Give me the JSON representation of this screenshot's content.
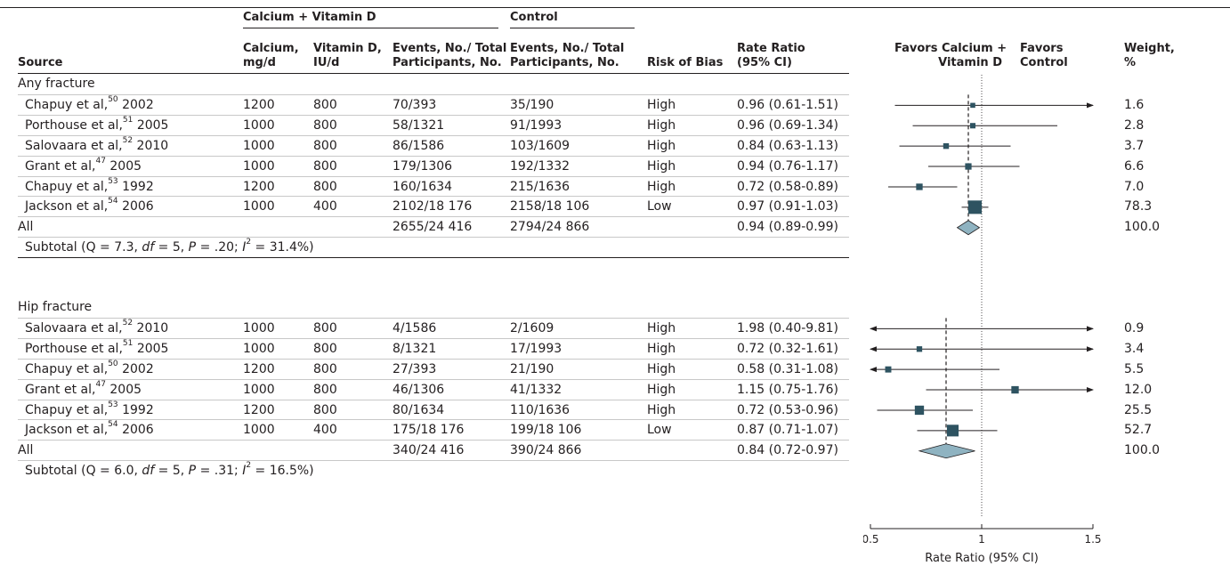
{
  "headers": {
    "group_calcium": "Calcium + Vitamin D",
    "group_control": "Control",
    "source": "Source",
    "calcium_1": "Calcium,",
    "calcium_2": "mg/d",
    "vitd_1": "Vitamin D,",
    "vitd_2": "IU/d",
    "events_1": "Events, No./ Total",
    "events_2": "Participants, No.",
    "ctrl_1": "Events, No./ Total",
    "ctrl_2": "Participants, No.",
    "risk": "Risk of Bias",
    "rr_1": "Rate Ratio",
    "rr_2": "(95% CI)",
    "favors_left_1": "Favors Calcium +",
    "favors_left_2": "Vitamin D",
    "favors_right_1": "Favors",
    "favors_right_2": "Control",
    "weight_1": "Weight,",
    "weight_2": "%"
  },
  "groups": [
    {
      "name": "Any fracture",
      "rows": [
        {
          "author": "Chapuy et al,",
          "ref": "50",
          "year": "2002",
          "calcium": "1200",
          "vitd": "800",
          "events": "70/393",
          "control": "35/190",
          "risk": "High",
          "rr": "0.96 (0.61-1.51)",
          "weight": "1.6"
        },
        {
          "author": "Porthouse et al,",
          "ref": "51",
          "year": "2005",
          "calcium": "1000",
          "vitd": "800",
          "events": "58/1321",
          "control": "91/1993",
          "risk": "High",
          "rr": "0.96 (0.69-1.34)",
          "weight": "2.8"
        },
        {
          "author": "Salovaara et al,",
          "ref": "52",
          "year": "2010",
          "calcium": "1000",
          "vitd": "800",
          "events": "86/1586",
          "control": "103/1609",
          "risk": "High",
          "rr": "0.84 (0.63-1.13)",
          "weight": "3.7"
        },
        {
          "author": "Grant et al,",
          "ref": "47",
          "year": "2005",
          "calcium": "1000",
          "vitd": "800",
          "events": "179/1306",
          "control": "192/1332",
          "risk": "High",
          "rr": "0.94 (0.76-1.17)",
          "weight": "6.6"
        },
        {
          "author": "Chapuy et al,",
          "ref": "53",
          "year": "1992",
          "calcium": "1200",
          "vitd": "800",
          "events": "160/1634",
          "control": "215/1636",
          "risk": "High",
          "rr": "0.72 (0.58-0.89)",
          "weight": "7.0"
        },
        {
          "author": "Jackson et al,",
          "ref": "54",
          "year": "2006",
          "calcium": "1000",
          "vitd": "400",
          "events": "2102/18 176",
          "control": "2158/18 106",
          "risk": "Low",
          "rr": "0.97 (0.91-1.03)",
          "weight": "78.3"
        }
      ],
      "all": {
        "label": "All",
        "events": "2655/24 416",
        "control": "2794/24 866",
        "rr": "0.94 (0.89-0.99)",
        "weight": "100.0"
      },
      "subtotal": {
        "prefix": "Subtotal (Q = 7.3, ",
        "df": "df",
        "mid": " = 5, ",
        "p": "P",
        "pval": " = .20; ",
        "i": "I",
        "isq": "2",
        "rest": " = 31.4%)"
      }
    },
    {
      "name": "Hip fracture",
      "rows": [
        {
          "author": "Salovaara et al,",
          "ref": "52",
          "year": "2010",
          "calcium": "1000",
          "vitd": "800",
          "events": "4/1586",
          "control": "2/1609",
          "risk": "High",
          "rr": "1.98 (0.40-9.81)",
          "weight": "0.9"
        },
        {
          "author": "Porthouse et al,",
          "ref": "51",
          "year": "2005",
          "calcium": "1000",
          "vitd": "800",
          "events": "8/1321",
          "control": "17/1993",
          "risk": "High",
          "rr": "0.72 (0.32-1.61)",
          "weight": "3.4"
        },
        {
          "author": "Chapuy et al,",
          "ref": "50",
          "year": "2002",
          "calcium": "1200",
          "vitd": "800",
          "events": "27/393",
          "control": "21/190",
          "risk": "High",
          "rr": "0.58 (0.31-1.08)",
          "weight": "5.5"
        },
        {
          "author": "Grant et al,",
          "ref": "47",
          "year": "2005",
          "calcium": "1000",
          "vitd": "800",
          "events": "46/1306",
          "control": "41/1332",
          "risk": "High",
          "rr": "1.15 (0.75-1.76)",
          "weight": "12.0"
        },
        {
          "author": "Chapuy et al,",
          "ref": "53",
          "year": "1992",
          "calcium": "1200",
          "vitd": "800",
          "events": "80/1634",
          "control": "110/1636",
          "risk": "High",
          "rr": "0.72 (0.53-0.96)",
          "weight": "25.5"
        },
        {
          "author": "Jackson et al,",
          "ref": "54",
          "year": "2006",
          "calcium": "1000",
          "vitd": "400",
          "events": "175/18 176",
          "control": "199/18 106",
          "risk": "Low",
          "rr": "0.87 (0.71-1.07)",
          "weight": "52.7"
        }
      ],
      "all": {
        "label": "All",
        "events": "340/24 416",
        "control": "390/24 866",
        "rr": "0.84 (0.72-0.97)",
        "weight": "100.0"
      },
      "subtotal": {
        "prefix": "Subtotal (Q = 6.0, ",
        "df": "df",
        "mid": " = 5, ",
        "p": "P",
        "pval": " = .31; ",
        "i": "I",
        "isq": "2",
        "rest": " = 16.5%)"
      }
    }
  ],
  "chart_data": {
    "type": "forest",
    "xlabel": "Rate Ratio (95% CI)",
    "xlim": [
      0.5,
      1.5
    ],
    "xticks": [
      "0.5",
      "1",
      "1.5"
    ],
    "null_line": 1,
    "colors": {
      "marker": "#2e5361",
      "diamond": "#8fb3c1",
      "line": "#231f20"
    },
    "series": [
      {
        "group": "Any fracture",
        "points": [
          {
            "est": 0.96,
            "lo": 0.61,
            "hi": 1.51,
            "weight": 1.6
          },
          {
            "est": 0.96,
            "lo": 0.69,
            "hi": 1.34,
            "weight": 2.8
          },
          {
            "est": 0.84,
            "lo": 0.63,
            "hi": 1.13,
            "weight": 3.7
          },
          {
            "est": 0.94,
            "lo": 0.76,
            "hi": 1.17,
            "weight": 6.6
          },
          {
            "est": 0.72,
            "lo": 0.58,
            "hi": 0.89,
            "weight": 7.0
          },
          {
            "est": 0.97,
            "lo": 0.91,
            "hi": 1.03,
            "weight": 78.3
          }
        ],
        "pooled": {
          "est": 0.94,
          "lo": 0.89,
          "hi": 0.99
        }
      },
      {
        "group": "Hip fracture",
        "points": [
          {
            "est": 1.98,
            "lo": 0.4,
            "hi": 9.81,
            "weight": 0.9
          },
          {
            "est": 0.72,
            "lo": 0.32,
            "hi": 1.61,
            "weight": 3.4
          },
          {
            "est": 0.58,
            "lo": 0.31,
            "hi": 1.08,
            "weight": 5.5
          },
          {
            "est": 1.15,
            "lo": 0.75,
            "hi": 1.76,
            "weight": 12.0
          },
          {
            "est": 0.72,
            "lo": 0.53,
            "hi": 0.96,
            "weight": 25.5
          },
          {
            "est": 0.87,
            "lo": 0.71,
            "hi": 1.07,
            "weight": 52.7
          }
        ],
        "pooled": {
          "est": 0.84,
          "lo": 0.72,
          "hi": 0.97
        }
      }
    ]
  }
}
